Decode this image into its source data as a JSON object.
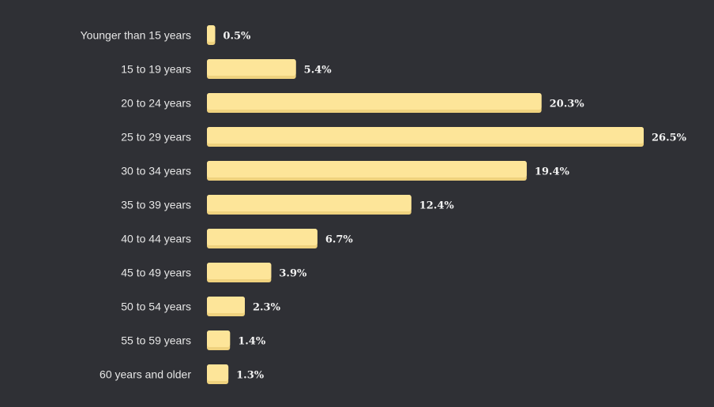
{
  "chart_data": {
    "type": "bar",
    "orientation": "horizontal",
    "title": "",
    "xlabel": "",
    "ylabel": "",
    "categories": [
      "Younger than 15 years",
      "15 to 19 years",
      "20 to 24 years",
      "25 to 29 years",
      "30 to 34 years",
      "35 to 39 years",
      "40 to 44 years",
      "45 to 49 years",
      "50 to 54 years",
      "55 to 59 years",
      "60 years and older"
    ],
    "values": [
      0.5,
      5.4,
      20.3,
      26.5,
      19.4,
      12.4,
      6.7,
      3.9,
      2.3,
      1.4,
      1.3
    ],
    "value_labels": [
      "0.5%",
      "5.4%",
      "20.3%",
      "26.5%",
      "19.4%",
      "12.4%",
      "6.7%",
      "3.9%",
      "2.3%",
      "1.4%",
      "1.3%"
    ],
    "xlim": [
      0,
      26.5
    ],
    "grid": false,
    "legend": "none",
    "colors": {
      "background": "#2f3035",
      "bar": "#fde599",
      "bar_shade": "#efd27e",
      "category_text": "#e6e6e6",
      "value_text": "#f2f2f2"
    }
  }
}
